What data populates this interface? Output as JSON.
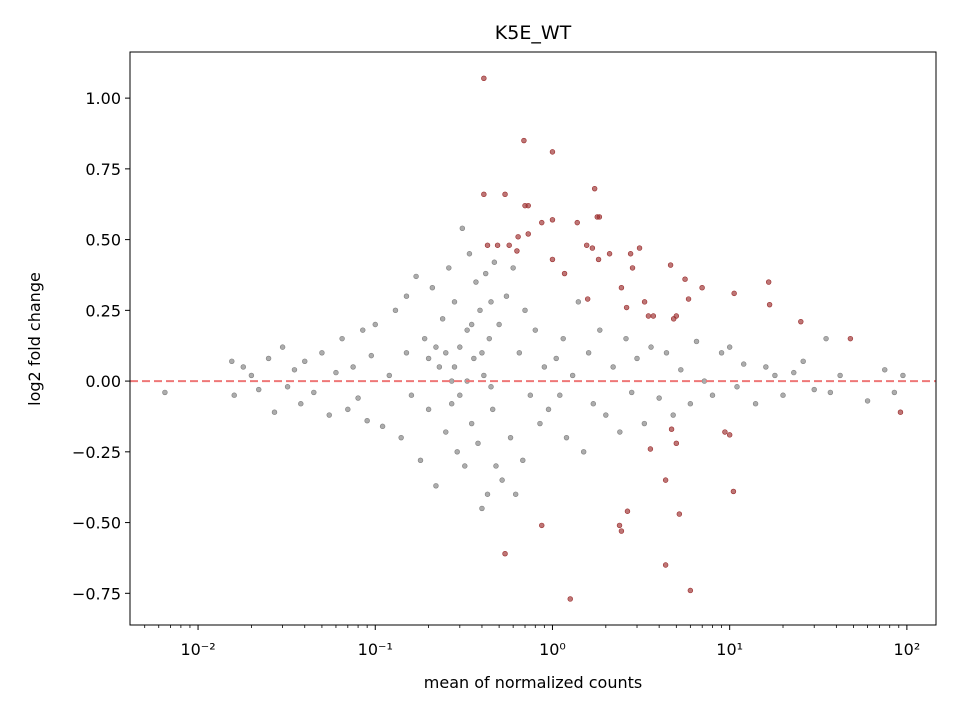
{
  "chart_data": {
    "type": "scatter",
    "title": "K5E_WT",
    "xlabel": "mean of normalized counts",
    "ylabel": "log2 fold change",
    "xscale": "log",
    "xlim": [
      0.00413,
      146
    ],
    "ylim": [
      -0.862,
      1.163
    ],
    "xticks": [
      {
        "value": 0.01,
        "label": "10⁻²"
      },
      {
        "value": 0.1,
        "label": "10⁻¹"
      },
      {
        "value": 1,
        "label": "10⁰"
      },
      {
        "value": 10,
        "label": "10¹"
      },
      {
        "value": 100,
        "label": "10²"
      }
    ],
    "xminorticks": [
      0.005,
      0.006,
      0.007,
      0.008,
      0.009,
      0.02,
      0.03,
      0.04,
      0.05,
      0.06,
      0.07,
      0.08,
      0.09,
      0.2,
      0.3,
      0.4,
      0.5,
      0.6,
      0.7,
      0.8,
      0.9,
      2,
      3,
      4,
      5,
      6,
      7,
      8,
      9,
      20,
      30,
      40,
      50,
      60,
      70,
      80,
      90
    ],
    "yticks": [
      {
        "value": -0.75,
        "label": "−0.75"
      },
      {
        "value": -0.5,
        "label": "−0.50"
      },
      {
        "value": -0.25,
        "label": "−0.25"
      },
      {
        "value": 0,
        "label": "0.00"
      },
      {
        "value": 0.25,
        "label": "0.25"
      },
      {
        "value": 0.5,
        "label": "0.50"
      },
      {
        "value": 0.75,
        "label": "0.75"
      },
      {
        "value": 1,
        "label": "1.00"
      }
    ],
    "reference_line": {
      "y": 0,
      "color": "#ee7777"
    },
    "series": [
      {
        "color": "#808080",
        "x": [
          0.0065,
          0.0155,
          0.016,
          0.018,
          0.02,
          0.022,
          0.025,
          0.027,
          0.03,
          0.032,
          0.035,
          0.038,
          0.04,
          0.045,
          0.05,
          0.055,
          0.06,
          0.065,
          0.07,
          0.075,
          0.08,
          0.085,
          0.09,
          0.095,
          0.1,
          0.11,
          0.12,
          0.13,
          0.14,
          0.15,
          0.15,
          0.16,
          0.17,
          0.18,
          0.19,
          0.2,
          0.21,
          0.22,
          0.23,
          0.24,
          0.25,
          0.26,
          0.27,
          0.28,
          0.29,
          0.3,
          0.31,
          0.32,
          0.33,
          0.34,
          0.35,
          0.36,
          0.37,
          0.38,
          0.39,
          0.4,
          0.41,
          0.42,
          0.43,
          0.44,
          0.45,
          0.46,
          0.47,
          0.48,
          0.5,
          0.52,
          0.55,
          0.58,
          0.6,
          0.62,
          0.65,
          0.68,
          0.7,
          0.75,
          0.8,
          0.85,
          0.9,
          0.95,
          1.05,
          1.1,
          1.15,
          1.2,
          1.3,
          1.4,
          1.5,
          1.6,
          1.7,
          1.85,
          2.0,
          2.2,
          2.4,
          2.6,
          2.8,
          3.0,
          3.3,
          3.6,
          4.0,
          4.4,
          4.8,
          5.3,
          6.0,
          6.5,
          7.2,
          8.0,
          9.0,
          10,
          11,
          12,
          14,
          16,
          18,
          20,
          23,
          26,
          30,
          35,
          37,
          42,
          60,
          75,
          85,
          95,
          0.25,
          0.28,
          0.3,
          0.33,
          0.22,
          0.35,
          0.27,
          0.2,
          0.4,
          0.45
        ],
        "values": [
          -0.04,
          0.07,
          -0.05,
          0.05,
          0.02,
          -0.03,
          0.08,
          -0.11,
          0.12,
          -0.02,
          0.04,
          -0.08,
          0.07,
          -0.04,
          0.1,
          -0.12,
          0.03,
          0.15,
          -0.1,
          0.05,
          -0.06,
          0.18,
          -0.14,
          0.09,
          0.2,
          -0.16,
          0.02,
          0.25,
          -0.2,
          0.3,
          0.1,
          -0.05,
          0.37,
          -0.28,
          0.15,
          -0.1,
          0.33,
          -0.37,
          0.05,
          0.22,
          -0.18,
          0.4,
          0.0,
          0.28,
          -0.25,
          0.12,
          0.54,
          -0.3,
          0.18,
          0.45,
          -0.15,
          0.08,
          0.35,
          -0.22,
          0.25,
          -0.45,
          0.02,
          0.38,
          -0.4,
          0.15,
          0.28,
          -0.1,
          0.42,
          -0.3,
          0.2,
          -0.35,
          0.3,
          -0.2,
          0.4,
          -0.4,
          0.1,
          -0.28,
          0.25,
          -0.05,
          0.18,
          -0.15,
          0.05,
          -0.1,
          0.08,
          -0.05,
          0.15,
          -0.2,
          0.02,
          0.28,
          -0.25,
          0.1,
          -0.08,
          0.18,
          -0.12,
          0.05,
          -0.18,
          0.15,
          -0.04,
          0.08,
          -0.15,
          0.12,
          -0.06,
          0.1,
          -0.12,
          0.04,
          -0.08,
          0.14,
          0.0,
          -0.05,
          0.1,
          0.12,
          -0.02,
          0.06,
          -0.08,
          0.05,
          0.02,
          -0.05,
          0.03,
          0.07,
          -0.03,
          0.15,
          -0.04,
          0.02,
          -0.07,
          0.04,
          -0.04,
          0.02,
          0.1,
          0.05,
          -0.05,
          0.0,
          0.12,
          0.2,
          -0.08,
          0.08,
          0.1,
          -0.02
        ]
      },
      {
        "color": "#9b2d2d",
        "x": [
          0.41,
          0.69,
          1.0,
          0.41,
          0.54,
          0.7,
          0.73,
          1.73,
          1.79,
          1.84,
          0.87,
          1.0,
          1.38,
          0.43,
          0.49,
          0.57,
          0.64,
          0.63,
          0.73,
          1.56,
          1.68,
          1.82,
          2.1,
          2.76,
          3.1,
          1.0,
          1.17,
          2.83,
          4.64,
          5.6,
          6.99,
          1.58,
          2.45,
          2.62,
          3.31,
          3.48,
          3.71,
          4.83,
          5.0,
          5.86,
          10.6,
          16.6,
          16.8,
          25.2,
          48,
          92,
          9.4,
          10,
          3.57,
          5.0,
          4.7,
          4.35,
          10.5,
          0.87,
          2.65,
          2.39,
          2.45,
          5.2,
          0.54,
          4.35,
          6.0,
          1.26
        ],
        "values": [
          1.07,
          0.85,
          0.81,
          0.66,
          0.66,
          0.62,
          0.62,
          0.68,
          0.58,
          0.58,
          0.56,
          0.57,
          0.56,
          0.48,
          0.48,
          0.48,
          0.51,
          0.46,
          0.52,
          0.48,
          0.47,
          0.43,
          0.45,
          0.45,
          0.47,
          0.43,
          0.38,
          0.4,
          0.41,
          0.36,
          0.33,
          0.29,
          0.33,
          0.26,
          0.28,
          0.23,
          0.23,
          0.22,
          0.23,
          0.29,
          0.31,
          0.35,
          0.27,
          0.21,
          0.15,
          -0.11,
          -0.18,
          -0.19,
          -0.24,
          -0.22,
          -0.17,
          -0.35,
          -0.39,
          -0.51,
          -0.46,
          -0.51,
          -0.53,
          -0.47,
          -0.61,
          -0.65,
          -0.74,
          -0.77
        ]
      }
    ]
  }
}
